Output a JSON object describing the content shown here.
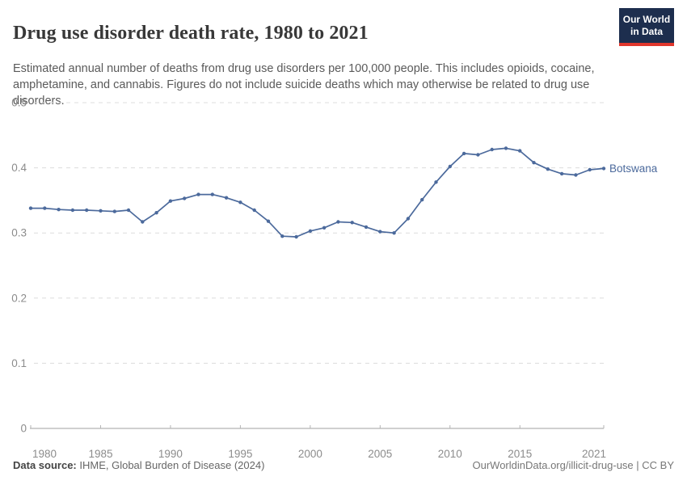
{
  "header": {
    "title": "Drug use disorder death rate, 1980 to 2021",
    "subtitle": "Estimated annual number of deaths from drug use disorders per 100,000 people. This includes opioids, cocaine, amphetamine, and cannabis. Figures do not include suicide deaths which may otherwise be related to drug use disorders.",
    "logo": {
      "line1": "Our World",
      "line2": "in Data",
      "bg_color": "#1d2e4e",
      "accent_color": "#e0362c"
    }
  },
  "chart_data": {
    "type": "line",
    "title": "Drug use disorder death rate, 1980 to 2021",
    "xlabel": "",
    "ylabel": "",
    "xlim": [
      1980,
      2021
    ],
    "ylim": [
      0,
      0.5
    ],
    "yticks": [
      0,
      0.1,
      0.2,
      0.3,
      0.4,
      0.5
    ],
    "ytick_labels": [
      "0",
      "0.1",
      "0.2",
      "0.3",
      "0.4",
      "0.5"
    ],
    "xticks": [
      1980,
      1985,
      1990,
      1995,
      2000,
      2005,
      2010,
      2015,
      2021
    ],
    "grid": "horizontal-dashed",
    "legend_position": "end-of-line-label",
    "series": [
      {
        "name": "Botswana",
        "color": "#4C6A9C",
        "x": [
          1980,
          1981,
          1982,
          1983,
          1984,
          1985,
          1986,
          1987,
          1988,
          1989,
          1990,
          1991,
          1992,
          1993,
          1994,
          1995,
          1996,
          1997,
          1998,
          1999,
          2000,
          2001,
          2002,
          2003,
          2004,
          2005,
          2006,
          2007,
          2008,
          2009,
          2010,
          2011,
          2012,
          2013,
          2014,
          2015,
          2016,
          2017,
          2018,
          2019,
          2020,
          2021
        ],
        "values": [
          0.338,
          0.338,
          0.336,
          0.335,
          0.335,
          0.334,
          0.333,
          0.335,
          0.317,
          0.331,
          0.349,
          0.353,
          0.359,
          0.359,
          0.354,
          0.347,
          0.335,
          0.318,
          0.295,
          0.294,
          0.303,
          0.308,
          0.317,
          0.316,
          0.309,
          0.302,
          0.3,
          0.322,
          0.351,
          0.378,
          0.402,
          0.422,
          0.42,
          0.428,
          0.43,
          0.426,
          0.408,
          0.398,
          0.391,
          0.389,
          0.397,
          0.399
        ]
      }
    ],
    "style": {
      "gridline_color": "#dcdcdc",
      "axis_line_color": "#a1a1a1",
      "tick_mark_color": "#b3b3b3",
      "tick_label_color": "#8c8c8c"
    }
  },
  "footer": {
    "data_source_label": "Data source:",
    "data_source_value": "IHME, Global Burden of Disease (2024)",
    "attribution": "OurWorldinData.org/illicit-drug-use | CC BY"
  }
}
